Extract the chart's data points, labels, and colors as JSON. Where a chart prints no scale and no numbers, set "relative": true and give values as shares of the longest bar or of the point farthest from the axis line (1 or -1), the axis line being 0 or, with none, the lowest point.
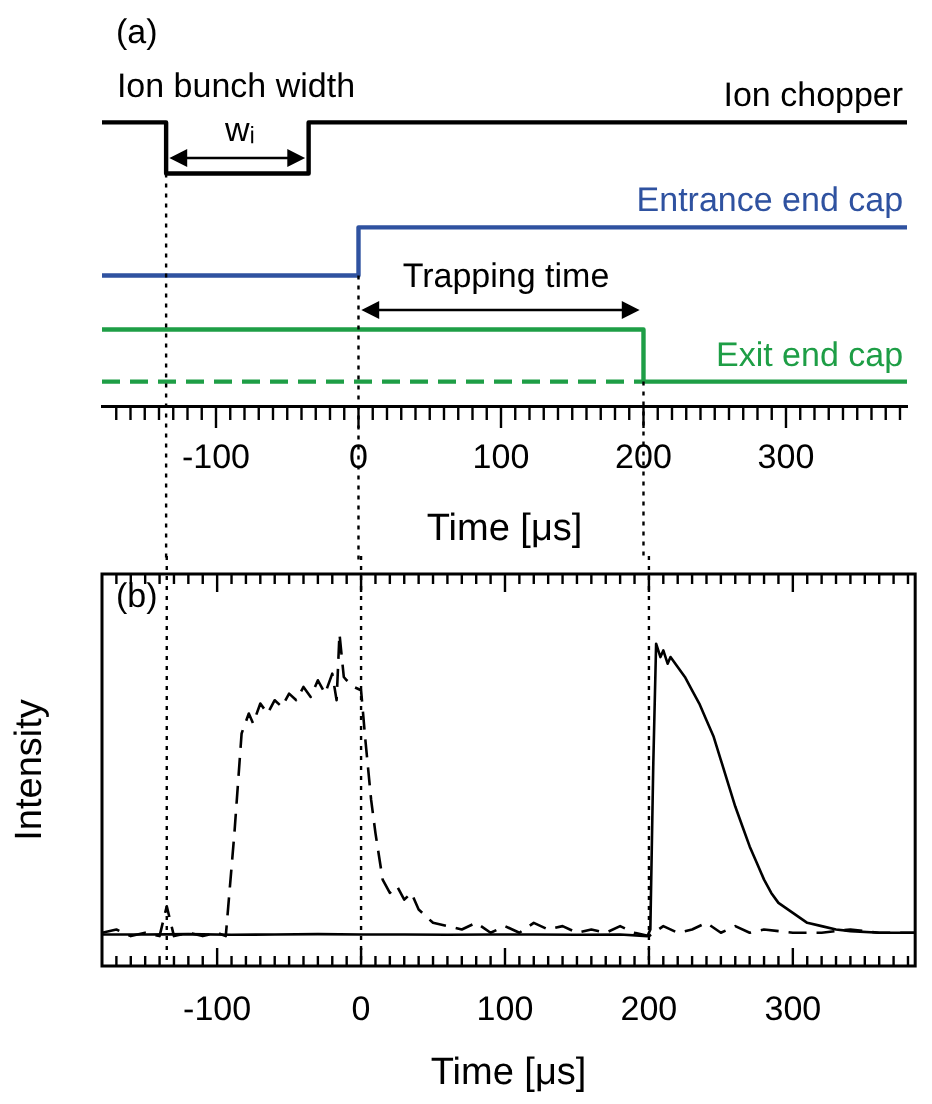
{
  "chart_data": [
    {
      "type": "step",
      "relative": true,
      "legend": false,
      "grid": false,
      "tick_labels": "x",
      "xlabel": "Time [μs]",
      "xlim": [
        -180,
        385
      ],
      "xticks": [
        {
          "value": -170,
          "label": null
        },
        {
          "value": -160,
          "label": null
        },
        {
          "value": -150,
          "label": null
        },
        {
          "value": -140,
          "label": null
        },
        {
          "value": -130,
          "label": null
        },
        {
          "value": -120,
          "label": null
        },
        {
          "value": -110,
          "label": null
        },
        -100,
        {
          "value": -90,
          "label": null
        },
        {
          "value": -80,
          "label": null
        },
        {
          "value": -70,
          "label": null
        },
        {
          "value": -60,
          "label": null
        },
        {
          "value": -50,
          "label": null
        },
        {
          "value": -40,
          "label": null
        },
        {
          "value": -30,
          "label": null
        },
        {
          "value": -20,
          "label": null
        },
        {
          "value": -10,
          "label": null
        },
        0,
        {
          "value": 10,
          "label": null
        },
        {
          "value": 20,
          "label": null
        },
        {
          "value": 30,
          "label": null
        },
        {
          "value": 40,
          "label": null
        },
        {
          "value": 50,
          "label": null
        },
        {
          "value": 60,
          "label": null
        },
        {
          "value": 70,
          "label": null
        },
        {
          "value": 80,
          "label": null
        },
        {
          "value": 90,
          "label": null
        },
        100,
        {
          "value": 110,
          "label": null
        },
        {
          "value": 120,
          "label": null
        },
        {
          "value": 130,
          "label": null
        },
        {
          "value": 140,
          "label": null
        },
        {
          "value": 150,
          "label": null
        },
        {
          "value": 160,
          "label": null
        },
        {
          "value": 170,
          "label": null
        },
        {
          "value": 180,
          "label": null
        },
        {
          "value": 190,
          "label": null
        },
        200,
        {
          "value": 210,
          "label": null
        },
        {
          "value": 220,
          "label": null
        },
        {
          "value": 230,
          "label": null
        },
        {
          "value": 240,
          "label": null
        },
        {
          "value": 250,
          "label": null
        },
        {
          "value": 260,
          "label": null
        },
        {
          "value": 270,
          "label": null
        },
        {
          "value": 280,
          "label": null
        },
        {
          "value": 290,
          "label": null
        },
        300,
        {
          "value": 310,
          "label": null
        },
        {
          "value": 320,
          "label": null
        },
        {
          "value": 330,
          "label": null
        },
        {
          "value": 340,
          "label": null
        },
        {
          "value": 350,
          "label": null
        },
        {
          "value": 360,
          "label": null
        },
        {
          "value": 370,
          "label": null
        },
        {
          "value": 380,
          "label": null
        }
      ],
      "series": [
        {
          "name": "Ion chopper",
          "color": "#000000",
          "x": [
            -180,
            -135,
            -35,
            385
          ],
          "values": [
            1,
            0.82,
            1,
            1
          ]
        },
        {
          "name": "Entrance end cap",
          "color": "#2f52a0",
          "x": [
            -180,
            0,
            385
          ],
          "values": [
            0.46,
            0.63,
            0.63
          ]
        },
        {
          "name": "Exit end cap",
          "color": "#1e9e46",
          "x": [
            -180,
            200,
            385
          ],
          "values": [
            0.27,
            0.086,
            0.086
          ]
        },
        {
          "color": "#1e9e46",
          "line_style": "dashed",
          "x": [
            -180,
            200
          ],
          "values": [
            0.086,
            0.086
          ]
        }
      ],
      "ref_lines": [
        {
          "axis": "x",
          "value": -135,
          "color": "#000000",
          "line_style": "dotted"
        },
        {
          "axis": "x",
          "value": 0,
          "color": "#000000",
          "line_style": "dotted"
        },
        {
          "axis": "x",
          "value": 200,
          "color": "#000000",
          "line_style": "dotted"
        }
      ],
      "annotations": [
        "(a)",
        "Ion bunch width",
        "wᵢ",
        "Trapping time"
      ]
    },
    {
      "type": "line",
      "relative": true,
      "legend": false,
      "grid": false,
      "tick_labels": "x",
      "xlabel": "Time [μs]",
      "ylabel": "Intensity",
      "xlim": [
        -180,
        385
      ],
      "xticks": [
        {
          "value": -170,
          "label": null
        },
        {
          "value": -160,
          "label": null
        },
        {
          "value": -150,
          "label": null
        },
        {
          "value": -140,
          "label": null
        },
        {
          "value": -130,
          "label": null
        },
        {
          "value": -120,
          "label": null
        },
        {
          "value": -110,
          "label": null
        },
        -100,
        {
          "value": -90,
          "label": null
        },
        {
          "value": -80,
          "label": null
        },
        {
          "value": -70,
          "label": null
        },
        {
          "value": -60,
          "label": null
        },
        {
          "value": -50,
          "label": null
        },
        {
          "value": -40,
          "label": null
        },
        {
          "value": -30,
          "label": null
        },
        {
          "value": -20,
          "label": null
        },
        {
          "value": -10,
          "label": null
        },
        0,
        {
          "value": 10,
          "label": null
        },
        {
          "value": 20,
          "label": null
        },
        {
          "value": 30,
          "label": null
        },
        {
          "value": 40,
          "label": null
        },
        {
          "value": 50,
          "label": null
        },
        {
          "value": 60,
          "label": null
        },
        {
          "value": 70,
          "label": null
        },
        {
          "value": 80,
          "label": null
        },
        {
          "value": 90,
          "label": null
        },
        100,
        {
          "value": 110,
          "label": null
        },
        {
          "value": 120,
          "label": null
        },
        {
          "value": 130,
          "label": null
        },
        {
          "value": 140,
          "label": null
        },
        {
          "value": 150,
          "label": null
        },
        {
          "value": 160,
          "label": null
        },
        {
          "value": 170,
          "label": null
        },
        {
          "value": 180,
          "label": null
        },
        {
          "value": 190,
          "label": null
        },
        200,
        {
          "value": 210,
          "label": null
        },
        {
          "value": 220,
          "label": null
        },
        {
          "value": 230,
          "label": null
        },
        {
          "value": 240,
          "label": null
        },
        {
          "value": 250,
          "label": null
        },
        {
          "value": 260,
          "label": null
        },
        {
          "value": 270,
          "label": null
        },
        {
          "value": 280,
          "label": null
        },
        {
          "value": 290,
          "label": null
        },
        300,
        {
          "value": 310,
          "label": null
        },
        {
          "value": 320,
          "label": null
        },
        {
          "value": 330,
          "label": null
        },
        {
          "value": 340,
          "label": null
        },
        {
          "value": 350,
          "label": null
        },
        {
          "value": 360,
          "label": null
        },
        {
          "value": 370,
          "label": null
        },
        {
          "value": 380,
          "label": null
        }
      ],
      "series": [
        {
          "color": "#000000",
          "line_style": "dashed",
          "x": [
            -180,
            -170,
            -160,
            -150,
            -140,
            -135,
            -130,
            -120,
            -110,
            -100,
            -94,
            -88,
            -83,
            -78,
            -75,
            -70,
            -65,
            -60,
            -55,
            -50,
            -45,
            -40,
            -35,
            -30,
            -25,
            -20,
            -17,
            -15,
            -12,
            -10,
            -5,
            0,
            3,
            7,
            10,
            15,
            20,
            25,
            30,
            35,
            40,
            45,
            50,
            60,
            70,
            80,
            90,
            100,
            110,
            120,
            130,
            140,
            150,
            160,
            170,
            180,
            190,
            200,
            210,
            220,
            230,
            240,
            250,
            260,
            270,
            280,
            300,
            320,
            340,
            360,
            385
          ],
          "values": [
            0.1,
            0.11,
            0.09,
            0.1,
            0.09,
            0.18,
            0.09,
            0.1,
            0.09,
            0.1,
            0.09,
            0.4,
            0.7,
            0.76,
            0.73,
            0.79,
            0.76,
            0.8,
            0.78,
            0.82,
            0.8,
            0.84,
            0.81,
            0.86,
            0.82,
            0.88,
            0.8,
            1.0,
            0.87,
            0.86,
            0.84,
            0.83,
            0.68,
            0.5,
            0.4,
            0.26,
            0.22,
            0.24,
            0.2,
            0.22,
            0.17,
            0.15,
            0.13,
            0.12,
            0.11,
            0.13,
            0.1,
            0.12,
            0.1,
            0.13,
            0.11,
            0.12,
            0.1,
            0.11,
            0.1,
            0.12,
            0.1,
            0.09,
            0.12,
            0.1,
            0.11,
            0.13,
            0.1,
            0.12,
            0.1,
            0.11,
            0.1,
            0.1,
            0.11,
            0.1,
            0.1
          ]
        },
        {
          "color": "#000000",
          "x": [
            -180,
            -150,
            -120,
            -90,
            -60,
            -30,
            0,
            30,
            60,
            90,
            120,
            150,
            180,
            199,
            201,
            203,
            205,
            208,
            210,
            213,
            215,
            220,
            225,
            230,
            235,
            240,
            245,
            250,
            255,
            260,
            265,
            270,
            275,
            280,
            285,
            290,
            300,
            310,
            320,
            330,
            340,
            360,
            385
          ],
          "values": [
            0.095,
            0.095,
            0.096,
            0.094,
            0.095,
            0.096,
            0.095,
            0.095,
            0.094,
            0.095,
            0.095,
            0.094,
            0.095,
            0.09,
            0.11,
            0.6,
            0.97,
            0.93,
            0.95,
            0.91,
            0.93,
            0.9,
            0.87,
            0.83,
            0.79,
            0.74,
            0.69,
            0.62,
            0.55,
            0.48,
            0.42,
            0.36,
            0.31,
            0.26,
            0.22,
            0.19,
            0.16,
            0.13,
            0.12,
            0.11,
            0.105,
            0.1,
            0.1
          ]
        }
      ],
      "ref_lines": [
        {
          "axis": "x",
          "value": -135,
          "color": "#000000",
          "line_style": "dotted"
        },
        {
          "axis": "x",
          "value": 0,
          "color": "#000000",
          "line_style": "dotted"
        },
        {
          "axis": "x",
          "value": 200,
          "color": "#000000",
          "line_style": "dotted"
        }
      ],
      "annotations": [
        "(b)"
      ]
    }
  ]
}
